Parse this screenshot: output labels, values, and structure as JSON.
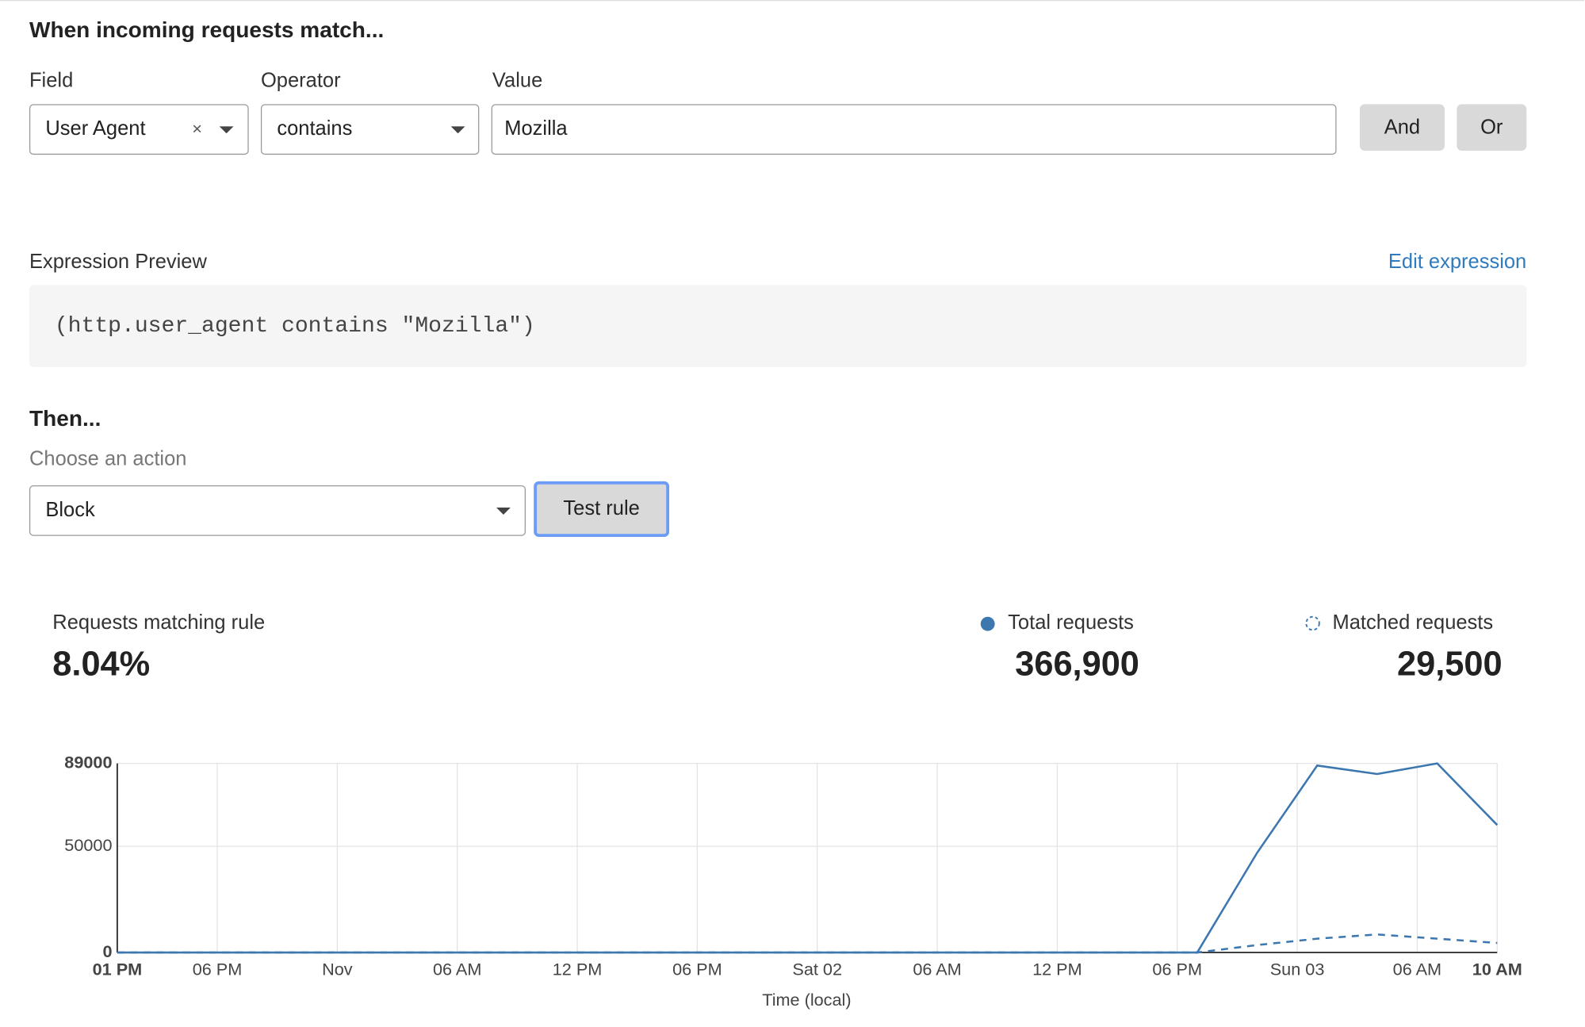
{
  "header": {
    "title": "When incoming requests match..."
  },
  "filter": {
    "field_label": "Field",
    "field_value": "User Agent",
    "clear": "×",
    "operator_label": "Operator",
    "operator_value": "contains",
    "value_label": "Value",
    "value": "Mozilla",
    "and_button": "And",
    "or_button": "Or"
  },
  "expression": {
    "label": "Expression Preview",
    "edit_link": "Edit expression",
    "code": "(http.user_agent contains \"Mozilla\")"
  },
  "action": {
    "title": "Then...",
    "label": "Choose an action",
    "value": "Block",
    "test_button": "Test rule"
  },
  "stats": {
    "match_label": "Requests matching rule",
    "match_value": "8.04%",
    "total_value": "366,900",
    "matched_value": "29,500"
  },
  "chart_data": {
    "type": "line",
    "xlabel": "Time (local)",
    "x": [
      0,
      3,
      6,
      9,
      12,
      15,
      18,
      21,
      24,
      27,
      30,
      33,
      36,
      39,
      42,
      45,
      48,
      51,
      54,
      57,
      60,
      63,
      66,
      69
    ],
    "xlim": [
      0,
      69
    ],
    "xticks": [
      {
        "value": 0,
        "label": "01 PM"
      },
      {
        "value": 5,
        "label": "06 PM"
      },
      {
        "value": 11,
        "label": "Nov"
      },
      {
        "value": 17,
        "label": "06 AM"
      },
      {
        "value": 23,
        "label": "12 PM"
      },
      {
        "value": 29,
        "label": "06 PM"
      },
      {
        "value": 35,
        "label": "Sat 02"
      },
      {
        "value": 41,
        "label": "06 AM"
      },
      {
        "value": 47,
        "label": "12 PM"
      },
      {
        "value": 53,
        "label": "06 PM"
      },
      {
        "value": 59,
        "label": "Sun 03"
      },
      {
        "value": 65,
        "label": "06 AM"
      },
      {
        "value": 69,
        "label": "10 AM"
      }
    ],
    "ylim": [
      0,
      89000
    ],
    "yticks": [
      0,
      50000,
      89000
    ],
    "grid": true,
    "series": [
      {
        "name": "Total requests",
        "color": "#3d77b0",
        "linestyle": "solid",
        "values": [
          0,
          0,
          0,
          0,
          0,
          0,
          0,
          0,
          0,
          0,
          0,
          0,
          0,
          0,
          0,
          0,
          0,
          0,
          0,
          47000,
          88000,
          84000,
          89000,
          60000
        ]
      },
      {
        "name": "Matched requests",
        "color": "#3d77b0",
        "linestyle": "dashed",
        "values": [
          0,
          0,
          0,
          0,
          0,
          0,
          0,
          0,
          0,
          0,
          0,
          0,
          0,
          0,
          0,
          0,
          0,
          0,
          0,
          3500,
          6500,
          8500,
          6500,
          4500
        ]
      }
    ]
  }
}
